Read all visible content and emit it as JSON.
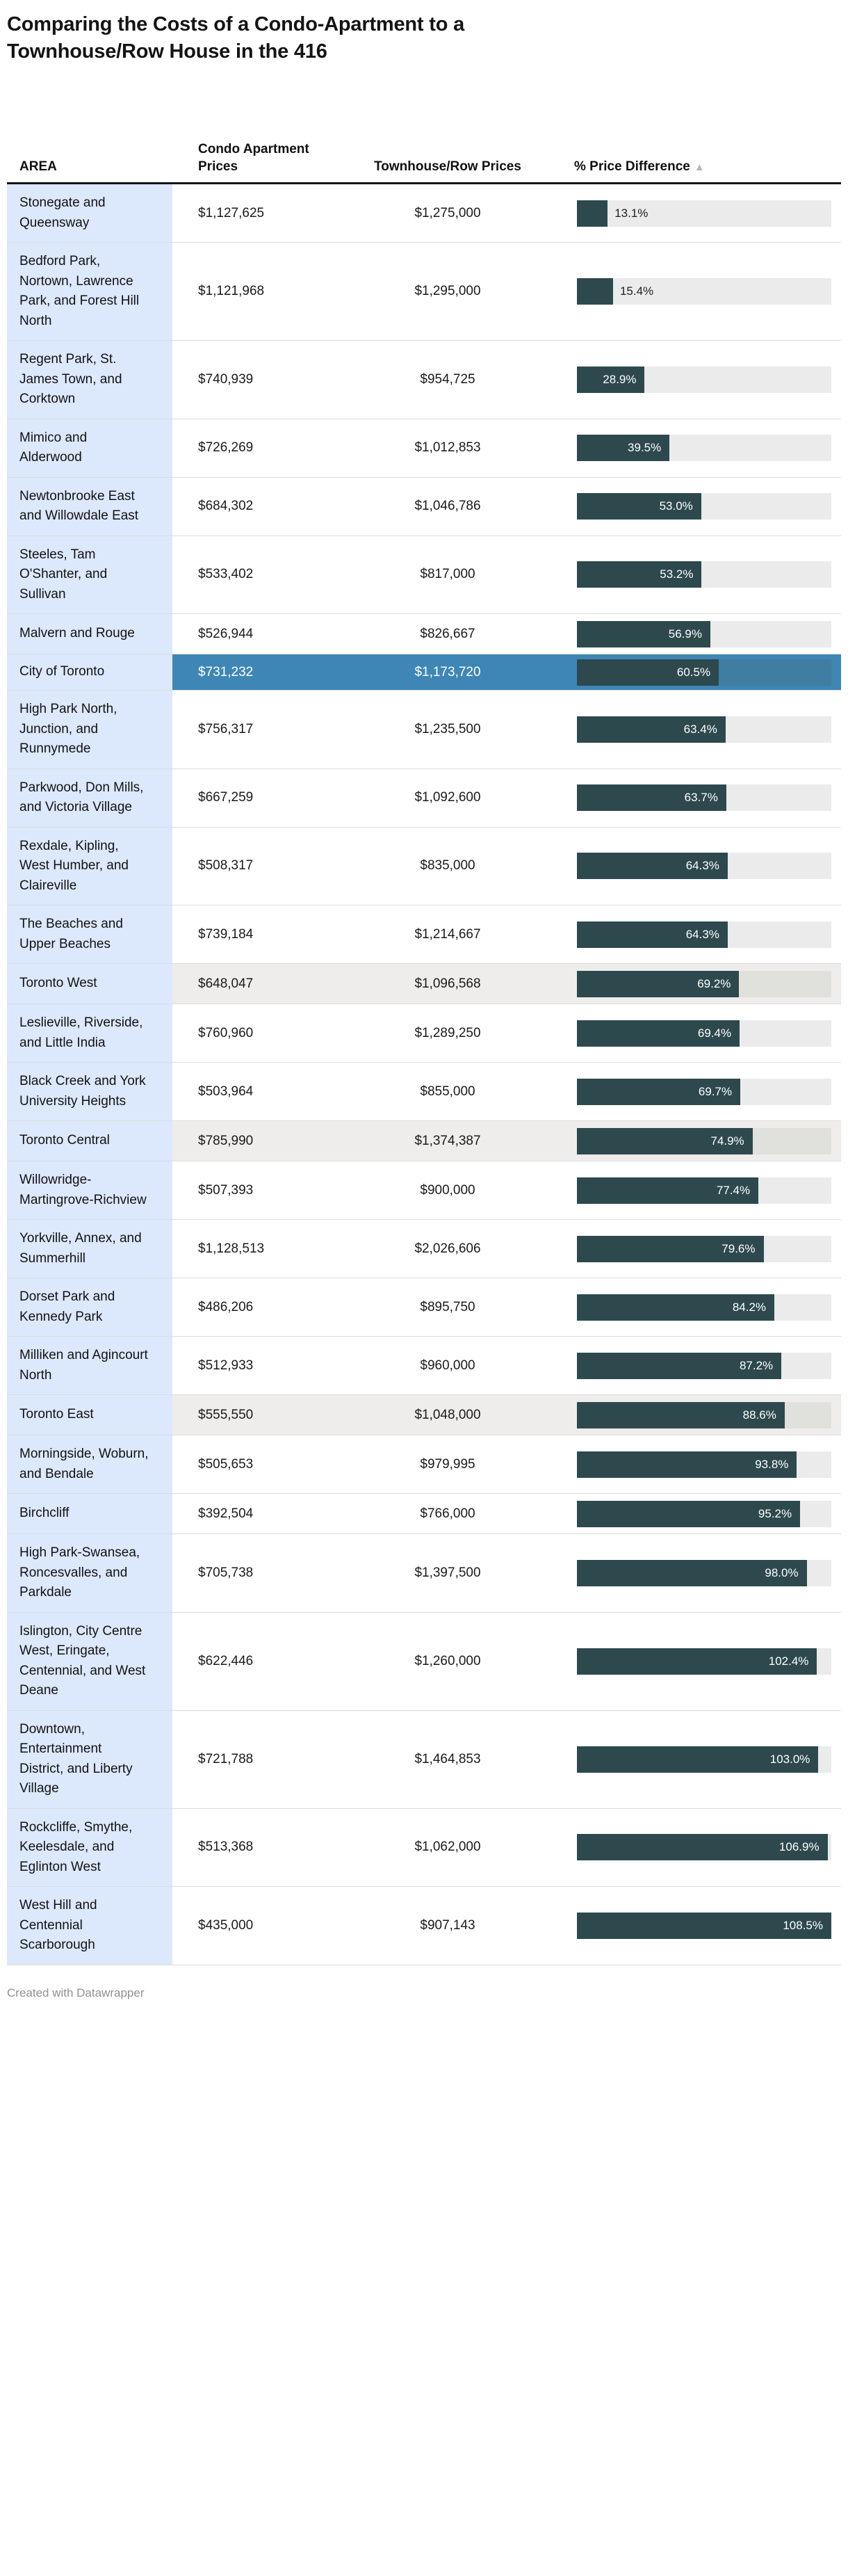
{
  "title": "Comparing the Costs of a Condo-Apartment to a Townhouse/Row House in the 416",
  "footer": "Created with Datawrapper",
  "header": {
    "area": "AREA",
    "condo": "Condo Apartment Prices",
    "townhouse": "Townhouse/Row Prices",
    "diff": "% Price Difference",
    "sort_icon": "▲"
  },
  "colors": {
    "bar_fill": "#2e494d",
    "bar_track": "#ebebeb",
    "bar_track_aggregate": "#e0e0dd",
    "bar_track_highlight": "#3f7ea0",
    "area_cell_bg": "#dce8fc",
    "aggregate_row_bg": "#eeedeb",
    "highlight_row_bg": "#3e86b5",
    "header_border": "#141414",
    "divider": "#dcdcdc",
    "footer_text": "#909090",
    "label_inside": "#ffffff",
    "label_outside": "#1f1f1f"
  },
  "chart_data": {
    "type": "table",
    "title": "Comparing the Costs of a Condo-Apartment to a Townhouse/Row House in the 416",
    "columns": [
      "AREA",
      "Condo Apartment Prices",
      "Townhouse/Row Prices",
      "% Price Difference"
    ],
    "bar_scale_max_pct": 108.5,
    "sorted_by": "% Price Difference",
    "sort_direction": "ascending",
    "rows": [
      {
        "area": "Stonegate and Queensway",
        "condo": "$1,127,625",
        "townhouse": "$1,275,000",
        "pct": 13.1,
        "pct_label": "13.1%",
        "style": "normal"
      },
      {
        "area": "Bedford Park, Nortown, Lawrence Park, and Forest Hill North",
        "condo": "$1,121,968",
        "townhouse": "$1,295,000",
        "pct": 15.4,
        "pct_label": "15.4%",
        "style": "normal"
      },
      {
        "area": "Regent Park, St. James Town, and Corktown",
        "condo": "$740,939",
        "townhouse": "$954,725",
        "pct": 28.9,
        "pct_label": "28.9%",
        "style": "normal"
      },
      {
        "area": "Mimico and Alderwood",
        "condo": "$726,269",
        "townhouse": "$1,012,853",
        "pct": 39.5,
        "pct_label": "39.5%",
        "style": "normal"
      },
      {
        "area": "Newtonbrooke East and Willowdale East",
        "condo": "$684,302",
        "townhouse": "$1,046,786",
        "pct": 53.0,
        "pct_label": "53.0%",
        "style": "normal"
      },
      {
        "area": "Steeles, Tam O'Shanter, and Sullivan",
        "condo": "$533,402",
        "townhouse": "$817,000",
        "pct": 53.2,
        "pct_label": "53.2%",
        "style": "normal"
      },
      {
        "area": "Malvern and Rouge",
        "condo": "$526,944",
        "townhouse": "$826,667",
        "pct": 56.9,
        "pct_label": "56.9%",
        "style": "normal"
      },
      {
        "area": "City of Toronto",
        "condo": "$731,232",
        "townhouse": "$1,173,720",
        "pct": 60.5,
        "pct_label": "60.5%",
        "style": "highlight"
      },
      {
        "area": "High Park North, Junction, and Runnymede",
        "condo": "$756,317",
        "townhouse": "$1,235,500",
        "pct": 63.4,
        "pct_label": "63.4%",
        "style": "normal"
      },
      {
        "area": "Parkwood, Don Mills, and Victoria Village",
        "condo": "$667,259",
        "townhouse": "$1,092,600",
        "pct": 63.7,
        "pct_label": "63.7%",
        "style": "normal"
      },
      {
        "area": "Rexdale, Kipling, West Humber, and Claireville",
        "condo": "$508,317",
        "townhouse": "$835,000",
        "pct": 64.3,
        "pct_label": "64.3%",
        "style": "normal"
      },
      {
        "area": "The Beaches and Upper Beaches",
        "condo": "$739,184",
        "townhouse": "$1,214,667",
        "pct": 64.3,
        "pct_label": "64.3%",
        "style": "normal"
      },
      {
        "area": "Toronto West",
        "condo": "$648,047",
        "townhouse": "$1,096,568",
        "pct": 69.2,
        "pct_label": "69.2%",
        "style": "aggregate"
      },
      {
        "area": "Leslieville, Riverside, and Little India",
        "condo": "$760,960",
        "townhouse": "$1,289,250",
        "pct": 69.4,
        "pct_label": "69.4%",
        "style": "normal"
      },
      {
        "area": "Black Creek and York University Heights",
        "condo": "$503,964",
        "townhouse": "$855,000",
        "pct": 69.7,
        "pct_label": "69.7%",
        "style": "normal"
      },
      {
        "area": "Toronto Central",
        "condo": "$785,990",
        "townhouse": "$1,374,387",
        "pct": 74.9,
        "pct_label": "74.9%",
        "style": "aggregate"
      },
      {
        "area": "Willowridge-Martingrove-Richview",
        "condo": "$507,393",
        "townhouse": "$900,000",
        "pct": 77.4,
        "pct_label": "77.4%",
        "style": "normal"
      },
      {
        "area": "Yorkville, Annex, and Summerhill",
        "condo": "$1,128,513",
        "townhouse": "$2,026,606",
        "pct": 79.6,
        "pct_label": "79.6%",
        "style": "normal"
      },
      {
        "area": "Dorset Park and Kennedy Park",
        "condo": "$486,206",
        "townhouse": "$895,750",
        "pct": 84.2,
        "pct_label": "84.2%",
        "style": "normal"
      },
      {
        "area": "Milliken and Agincourt North",
        "condo": "$512,933",
        "townhouse": "$960,000",
        "pct": 87.2,
        "pct_label": "87.2%",
        "style": "normal"
      },
      {
        "area": "Toronto East",
        "condo": "$555,550",
        "townhouse": "$1,048,000",
        "pct": 88.6,
        "pct_label": "88.6%",
        "style": "aggregate"
      },
      {
        "area": "Morningside, Woburn, and Bendale",
        "condo": "$505,653",
        "townhouse": "$979,995",
        "pct": 93.8,
        "pct_label": "93.8%",
        "style": "normal"
      },
      {
        "area": "Birchcliff",
        "condo": "$392,504",
        "townhouse": "$766,000",
        "pct": 95.2,
        "pct_label": "95.2%",
        "style": "normal"
      },
      {
        "area": "High Park-Swansea, Roncesvalles, and Parkdale",
        "condo": "$705,738",
        "townhouse": "$1,397,500",
        "pct": 98.0,
        "pct_label": "98.0%",
        "style": "normal"
      },
      {
        "area": "Islington, City Centre West, Eringate, Centennial, and West Deane",
        "condo": "$622,446",
        "townhouse": "$1,260,000",
        "pct": 102.4,
        "pct_label": "102.4%",
        "style": "normal"
      },
      {
        "area": "Downtown, Entertainment District, and Liberty Village",
        "condo": "$721,788",
        "townhouse": "$1,464,853",
        "pct": 103.0,
        "pct_label": "103.0%",
        "style": "normal"
      },
      {
        "area": "Rockcliffe, Smythe, Keelesdale, and Eglinton West",
        "condo": "$513,368",
        "townhouse": "$1,062,000",
        "pct": 106.9,
        "pct_label": "106.9%",
        "style": "normal"
      },
      {
        "area": "West Hill and Centennial Scarborough",
        "condo": "$435,000",
        "townhouse": "$907,143",
        "pct": 108.5,
        "pct_label": "108.5%",
        "style": "normal"
      }
    ]
  }
}
